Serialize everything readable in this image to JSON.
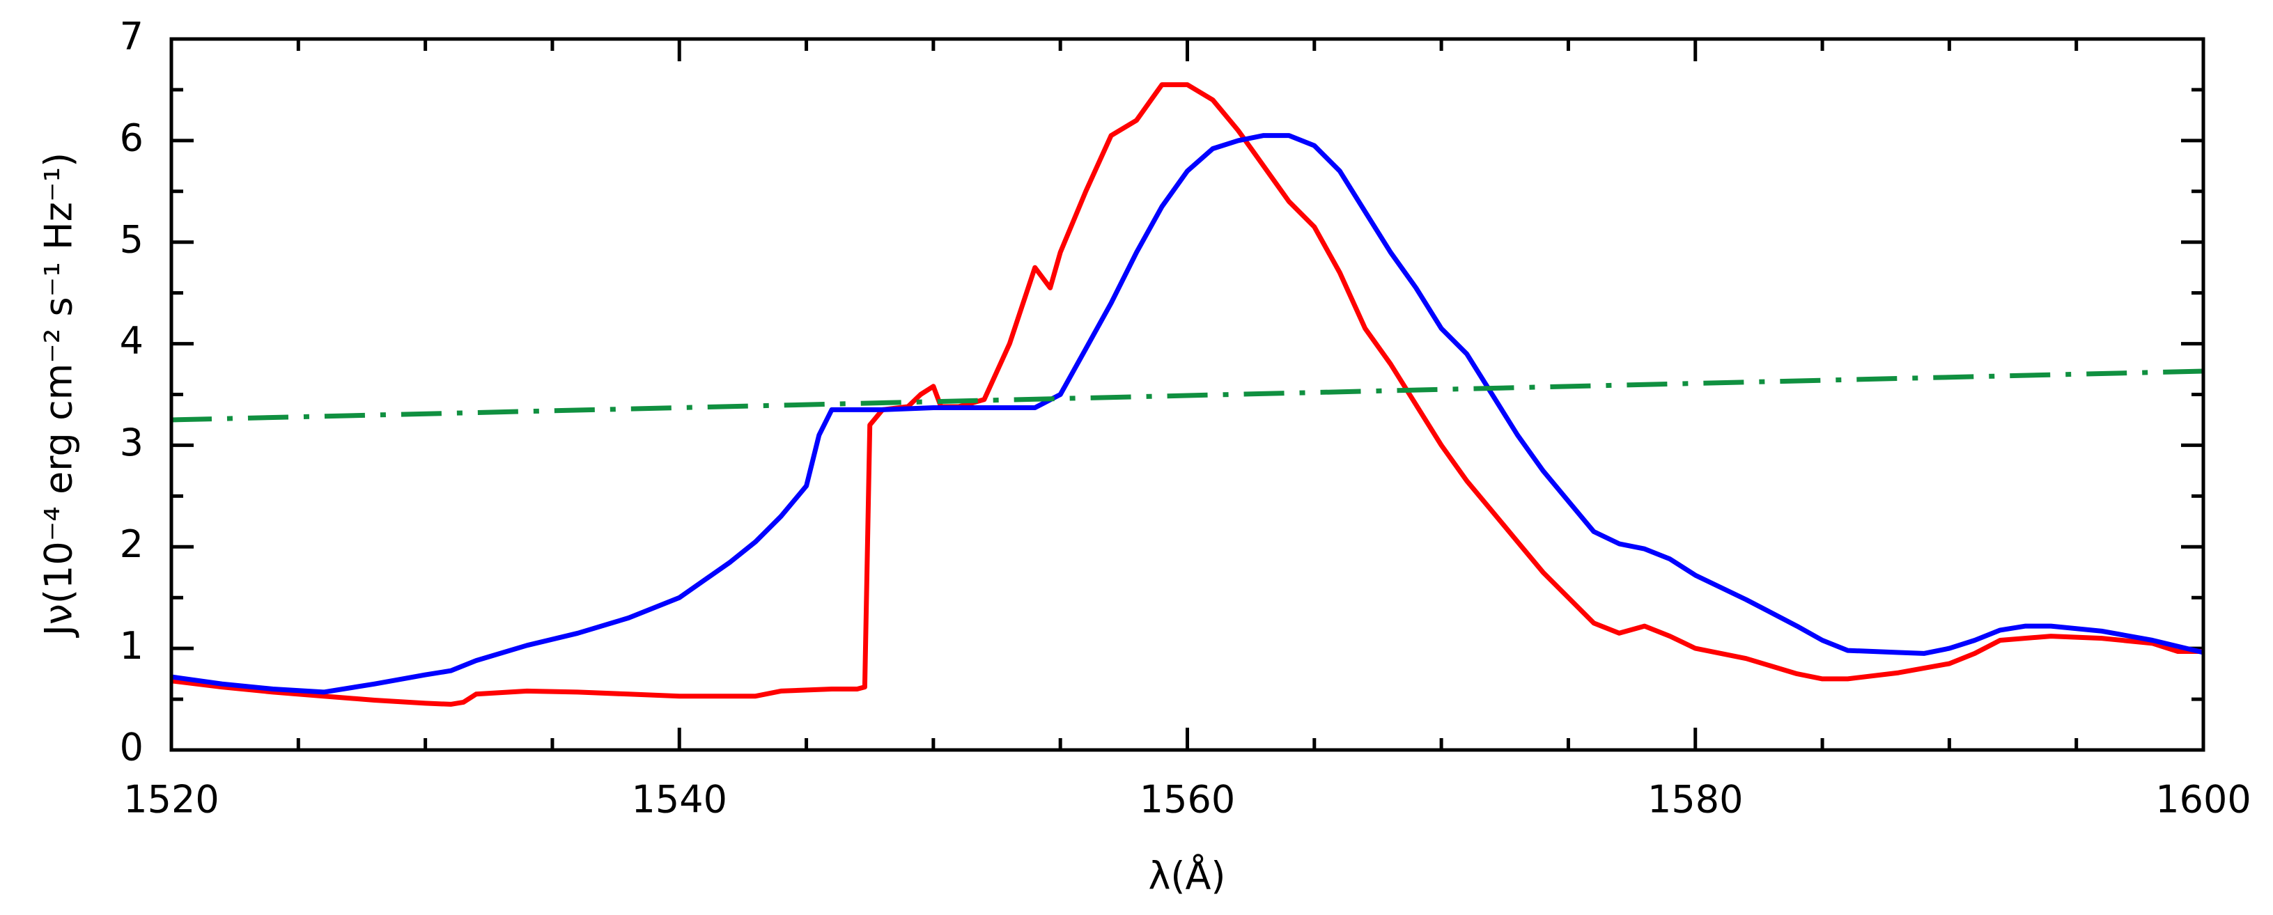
{
  "chart_data": {
    "type": "line",
    "xlabel": "λ(Å)",
    "ylabel": "Jν(10⁻⁴ erg cm⁻² s⁻¹ Hz⁻¹)",
    "xlim": [
      1520,
      1600
    ],
    "xticks": [
      1520,
      1540,
      1560,
      1580,
      1600
    ],
    "xminorticks": [
      1525,
      1530,
      1535,
      1545,
      1550,
      1555,
      1565,
      1570,
      1575,
      1585,
      1590,
      1595
    ],
    "ylim": [
      0,
      7
    ],
    "yticks": [
      0,
      1,
      2,
      3,
      4,
      5,
      6,
      7
    ],
    "yminorticks": [
      0.5,
      1.5,
      2.5,
      3.5,
      4.5,
      5.5,
      6.5
    ],
    "series": [
      {
        "color": "#ff0000",
        "dash": "solid",
        "x": [
          1520,
          1522,
          1524,
          1526,
          1528,
          1530,
          1531,
          1531.5,
          1532,
          1534,
          1536,
          1538,
          1540,
          1542,
          1543,
          1544,
          1546,
          1547,
          1547.3,
          1547.5,
          1548,
          1549,
          1549.5,
          1550,
          1550.3,
          1551,
          1552,
          1553,
          1554,
          1554.6,
          1555,
          1556,
          1557,
          1558,
          1559,
          1560,
          1561,
          1562,
          1563,
          1564,
          1565,
          1566,
          1567,
          1568,
          1569,
          1570,
          1571,
          1572,
          1573,
          1574,
          1575,
          1576,
          1577,
          1578,
          1579,
          1580,
          1582,
          1584,
          1585,
          1586,
          1588,
          1590,
          1591,
          1592,
          1594,
          1596,
          1598,
          1599,
          1600
        ],
        "values": [
          0.68,
          0.62,
          0.57,
          0.53,
          0.49,
          0.46,
          0.45,
          0.47,
          0.55,
          0.58,
          0.57,
          0.55,
          0.53,
          0.53,
          0.53,
          0.58,
          0.6,
          0.6,
          0.62,
          3.2,
          3.35,
          3.38,
          3.5,
          3.58,
          3.38,
          3.38,
          3.45,
          4.0,
          4.75,
          4.55,
          4.9,
          5.5,
          6.05,
          6.2,
          6.55,
          6.55,
          6.4,
          6.1,
          5.75,
          5.4,
          5.15,
          4.7,
          4.15,
          3.8,
          3.4,
          3.0,
          2.65,
          2.35,
          2.05,
          1.75,
          1.5,
          1.25,
          1.15,
          1.22,
          1.12,
          1.0,
          0.9,
          0.75,
          0.7,
          0.7,
          0.76,
          0.85,
          0.95,
          1.08,
          1.12,
          1.1,
          1.05,
          0.97,
          0.97
        ]
      },
      {
        "color": "#0000ff",
        "dash": "solid",
        "x": [
          1520,
          1522,
          1524,
          1526,
          1528,
          1530,
          1531,
          1532,
          1534,
          1536,
          1538,
          1540,
          1542,
          1543,
          1544,
          1545,
          1545.5,
          1546,
          1548,
          1550,
          1552,
          1554,
          1555,
          1556,
          1557,
          1558,
          1559,
          1560,
          1561,
          1562,
          1563,
          1564,
          1565,
          1566,
          1567,
          1568,
          1569,
          1570,
          1571,
          1572,
          1573,
          1574,
          1575,
          1576,
          1577,
          1578,
          1579,
          1580,
          1582,
          1584,
          1585,
          1586,
          1588,
          1589,
          1590,
          1591,
          1592,
          1593,
          1594,
          1596,
          1598,
          1600
        ],
        "values": [
          0.72,
          0.65,
          0.6,
          0.57,
          0.65,
          0.74,
          0.78,
          0.88,
          1.03,
          1.15,
          1.3,
          1.5,
          1.85,
          2.05,
          2.3,
          2.6,
          3.1,
          3.35,
          3.35,
          3.37,
          3.37,
          3.37,
          3.5,
          3.95,
          4.4,
          4.9,
          5.35,
          5.7,
          5.92,
          6.0,
          6.05,
          6.05,
          5.95,
          5.7,
          5.3,
          4.9,
          4.55,
          4.15,
          3.9,
          3.5,
          3.1,
          2.75,
          2.45,
          2.15,
          2.03,
          1.98,
          1.88,
          1.72,
          1.48,
          1.22,
          1.08,
          0.98,
          0.96,
          0.95,
          1.0,
          1.08,
          1.18,
          1.22,
          1.22,
          1.17,
          1.08,
          0.96
        ]
      },
      {
        "color": "#109040",
        "dash": "dashdot",
        "x": [
          1520,
          1600
        ],
        "values": [
          3.25,
          3.73
        ]
      }
    ]
  }
}
